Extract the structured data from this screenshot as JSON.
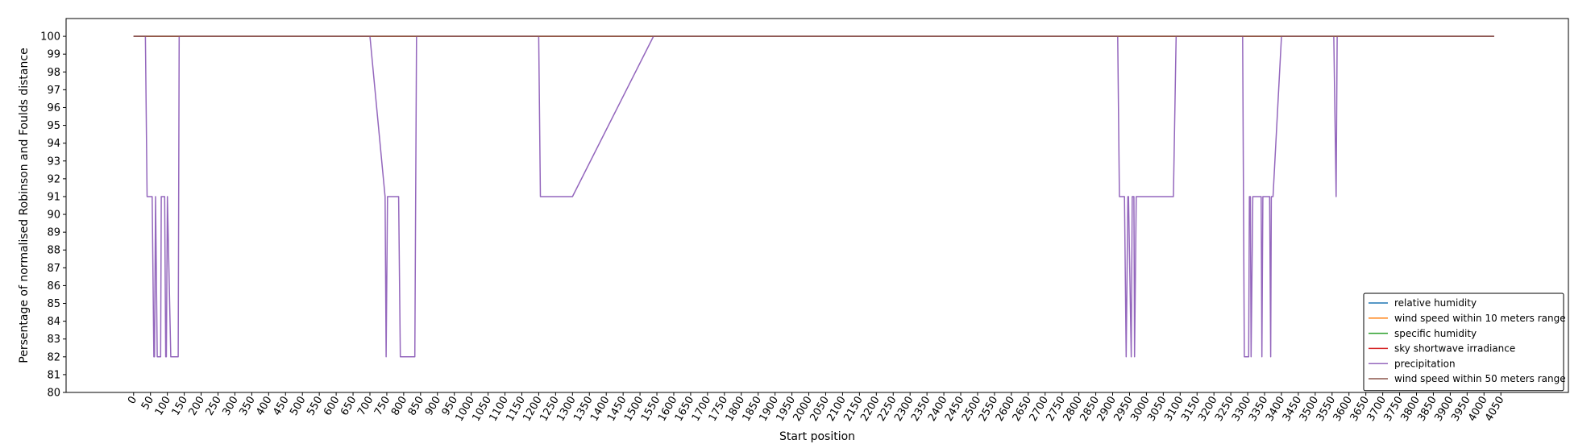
{
  "chart_data": {
    "type": "line",
    "title": "",
    "xlabel": "Start position",
    "ylabel": "Persentage of normalised Robinson and Foulds distance",
    "xlim": [
      -200,
      4250
    ],
    "ylim": [
      80,
      101
    ],
    "x_ticks": [
      0,
      50,
      100,
      150,
      200,
      250,
      300,
      350,
      400,
      450,
      500,
      550,
      600,
      650,
      700,
      750,
      800,
      850,
      900,
      950,
      1000,
      1050,
      1100,
      1150,
      1200,
      1250,
      1300,
      1350,
      1400,
      1450,
      1500,
      1550,
      1600,
      1650,
      1700,
      1750,
      1800,
      1850,
      1900,
      1950,
      2000,
      2050,
      2100,
      2150,
      2200,
      2250,
      2300,
      2350,
      2400,
      2450,
      2500,
      2550,
      2600,
      2650,
      2700,
      2750,
      2800,
      2850,
      2900,
      2950,
      3000,
      3050,
      3100,
      3150,
      3200,
      3250,
      3300,
      3350,
      3400,
      3450,
      3500,
      3550,
      3600,
      3650,
      3700,
      3750,
      3800,
      3850,
      3900,
      3950,
      4000,
      4050
    ],
    "y_ticks": [
      80,
      81,
      82,
      83,
      84,
      85,
      86,
      87,
      88,
      89,
      90,
      91,
      92,
      93,
      94,
      95,
      96,
      97,
      98,
      99,
      100
    ],
    "grid": false,
    "legend_position": "lower-right",
    "series": [
      {
        "name": "relative humidity",
        "color": "#1f77b4",
        "x": [
          0,
          4030
        ],
        "y": [
          100,
          100
        ]
      },
      {
        "name": "wind speed within 10 meters range",
        "color": "#ff7f0e",
        "x": [
          0,
          4030
        ],
        "y": [
          100,
          100
        ]
      },
      {
        "name": "specific humidity",
        "color": "#2ca02c",
        "x": [
          0,
          4030
        ],
        "y": [
          100,
          100
        ]
      },
      {
        "name": "sky shortwave irradiance",
        "color": "#d62728",
        "x": [
          0,
          4030
        ],
        "y": [
          100,
          100
        ]
      },
      {
        "name": "precipitation",
        "color": "#9467bd",
        "x": [
          0,
          35,
          40,
          55,
          60,
          62,
          65,
          70,
          80,
          82,
          92,
          95,
          97,
          100,
          110,
          132,
          135,
          140,
          700,
          745,
          748,
          752,
          755,
          785,
          790,
          833,
          838,
          840,
          1200,
          1205,
          1300,
          1540,
          1545,
          2915,
          2920,
          2935,
          2940,
          2945,
          2947,
          2955,
          2958,
          2963,
          2965,
          2970,
          2973,
          2977,
          3080,
          3088,
          3092,
          3285,
          3290,
          3303,
          3305,
          3308,
          3310,
          3315,
          3340,
          3342,
          3345,
          3347,
          3365,
          3368,
          3370,
          3375,
          3400,
          3405,
          3555,
          3562,
          3565,
          3570,
          4030
        ],
        "y": [
          100,
          100,
          91,
          91,
          82,
          82,
          91,
          82,
          82,
          91,
          91,
          82,
          82,
          91,
          82,
          82,
          100,
          100,
          100,
          91,
          82,
          91,
          91,
          91,
          82,
          82,
          100,
          100,
          100,
          91,
          91,
          100,
          100,
          100,
          91,
          91,
          82,
          91,
          91,
          82,
          91,
          91,
          82,
          91,
          91,
          91,
          91,
          100,
          100,
          100,
          82,
          82,
          91,
          91,
          82,
          91,
          91,
          82,
          91,
          91,
          91,
          82,
          91,
          91,
          100,
          100,
          100,
          91,
          100,
          100,
          100
        ]
      },
      {
        "name": "wind speed within 50 meters range",
        "color": "#8c564b",
        "x": [
          0,
          4030
        ],
        "y": [
          100,
          100
        ]
      }
    ]
  }
}
